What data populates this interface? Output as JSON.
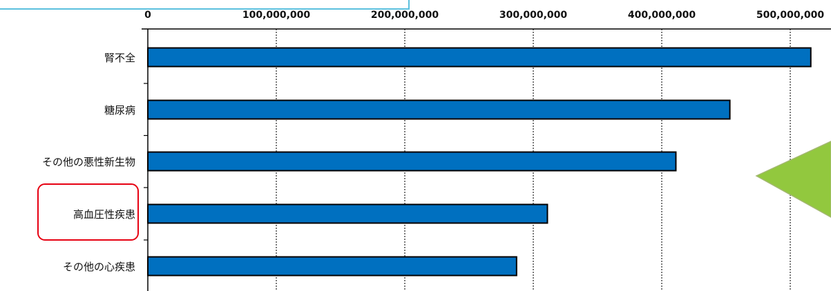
{
  "colors": {
    "bar_fill": "#0070C0",
    "bar_stroke": "#000000",
    "axis": "#000000",
    "gridline": "#333333",
    "highlight_box": "#E60012",
    "callout_box_border": "#5BC0DE",
    "callout_arrow": "#92C83E",
    "callout_arrow_stroke": "#A3B870"
  },
  "decorations": {
    "highlighted_category": "高血圧性疾患",
    "callout_box": "partially-visible-top-left",
    "callout_arrow": "green-triangle-right-edge"
  },
  "chart_data": {
    "type": "bar",
    "orientation": "horizontal",
    "categories": [
      "腎不全",
      "糖尿病",
      "その他の悪性新生物",
      "高血圧性疾患",
      "その他の心疾患"
    ],
    "values": [
      516000000,
      453000000,
      411000000,
      311000000,
      287000000
    ],
    "xlim": [
      0,
      500000000
    ],
    "x_ticks": [
      0,
      100000000,
      200000000,
      300000000,
      400000000,
      500000000
    ],
    "x_tick_labels": [
      "0",
      "100,000,000",
      "200,000,000",
      "300,000,000",
      "400,000,000",
      "500,000,000"
    ],
    "x_axis_position": "top",
    "grid": "vertical-dotted",
    "legend": "none"
  }
}
